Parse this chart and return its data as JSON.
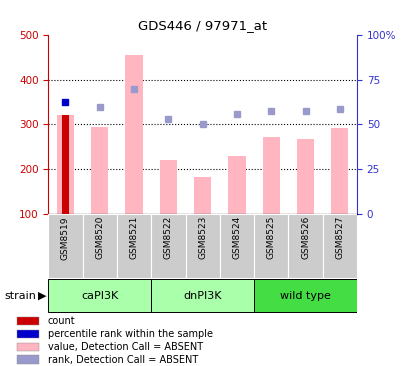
{
  "title": "GDS446 / 97971_at",
  "samples": [
    "GSM8519",
    "GSM8520",
    "GSM8521",
    "GSM8522",
    "GSM8523",
    "GSM8524",
    "GSM8525",
    "GSM8526",
    "GSM8527"
  ],
  "bar_values": [
    320,
    295,
    455,
    220,
    182,
    230,
    272,
    268,
    292
  ],
  "count_bar_index": 0,
  "count_bar_value": 320,
  "count_bar_color": "#CC0000",
  "rank_dots": [
    350,
    338,
    380,
    312,
    302,
    323,
    330,
    330,
    335
  ],
  "rank_dot_color_first": "#0000CC",
  "rank_dot_color_rest": "#9999CC",
  "absent_bar_color": "#FFB6C1",
  "ylim_left": [
    100,
    500
  ],
  "ylim_right": [
    0,
    100
  ],
  "yticks_left": [
    100,
    200,
    300,
    400,
    500
  ],
  "yticks_right": [
    0,
    25,
    50,
    75,
    100
  ],
  "ytick_labels_right": [
    "0",
    "25",
    "50",
    "75",
    "100%"
  ],
  "grid_lines": [
    200,
    300,
    400
  ],
  "left_tick_color": "#CC0000",
  "right_tick_color": "#3333CC",
  "xtick_bg_color": "#CCCCCC",
  "groups": [
    {
      "name": "caPI3K",
      "start": 0,
      "end": 2,
      "color": "#AAFFAA"
    },
    {
      "name": "dnPI3K",
      "start": 3,
      "end": 5,
      "color": "#AAFFAA"
    },
    {
      "name": "wild type",
      "start": 6,
      "end": 8,
      "color": "#44DD44"
    }
  ],
  "legend_items": [
    {
      "label": "count",
      "color": "#CC0000"
    },
    {
      "label": "percentile rank within the sample",
      "color": "#0000CC"
    },
    {
      "label": "value, Detection Call = ABSENT",
      "color": "#FFB6C1"
    },
    {
      "label": "rank, Detection Call = ABSENT",
      "color": "#9999CC"
    }
  ]
}
